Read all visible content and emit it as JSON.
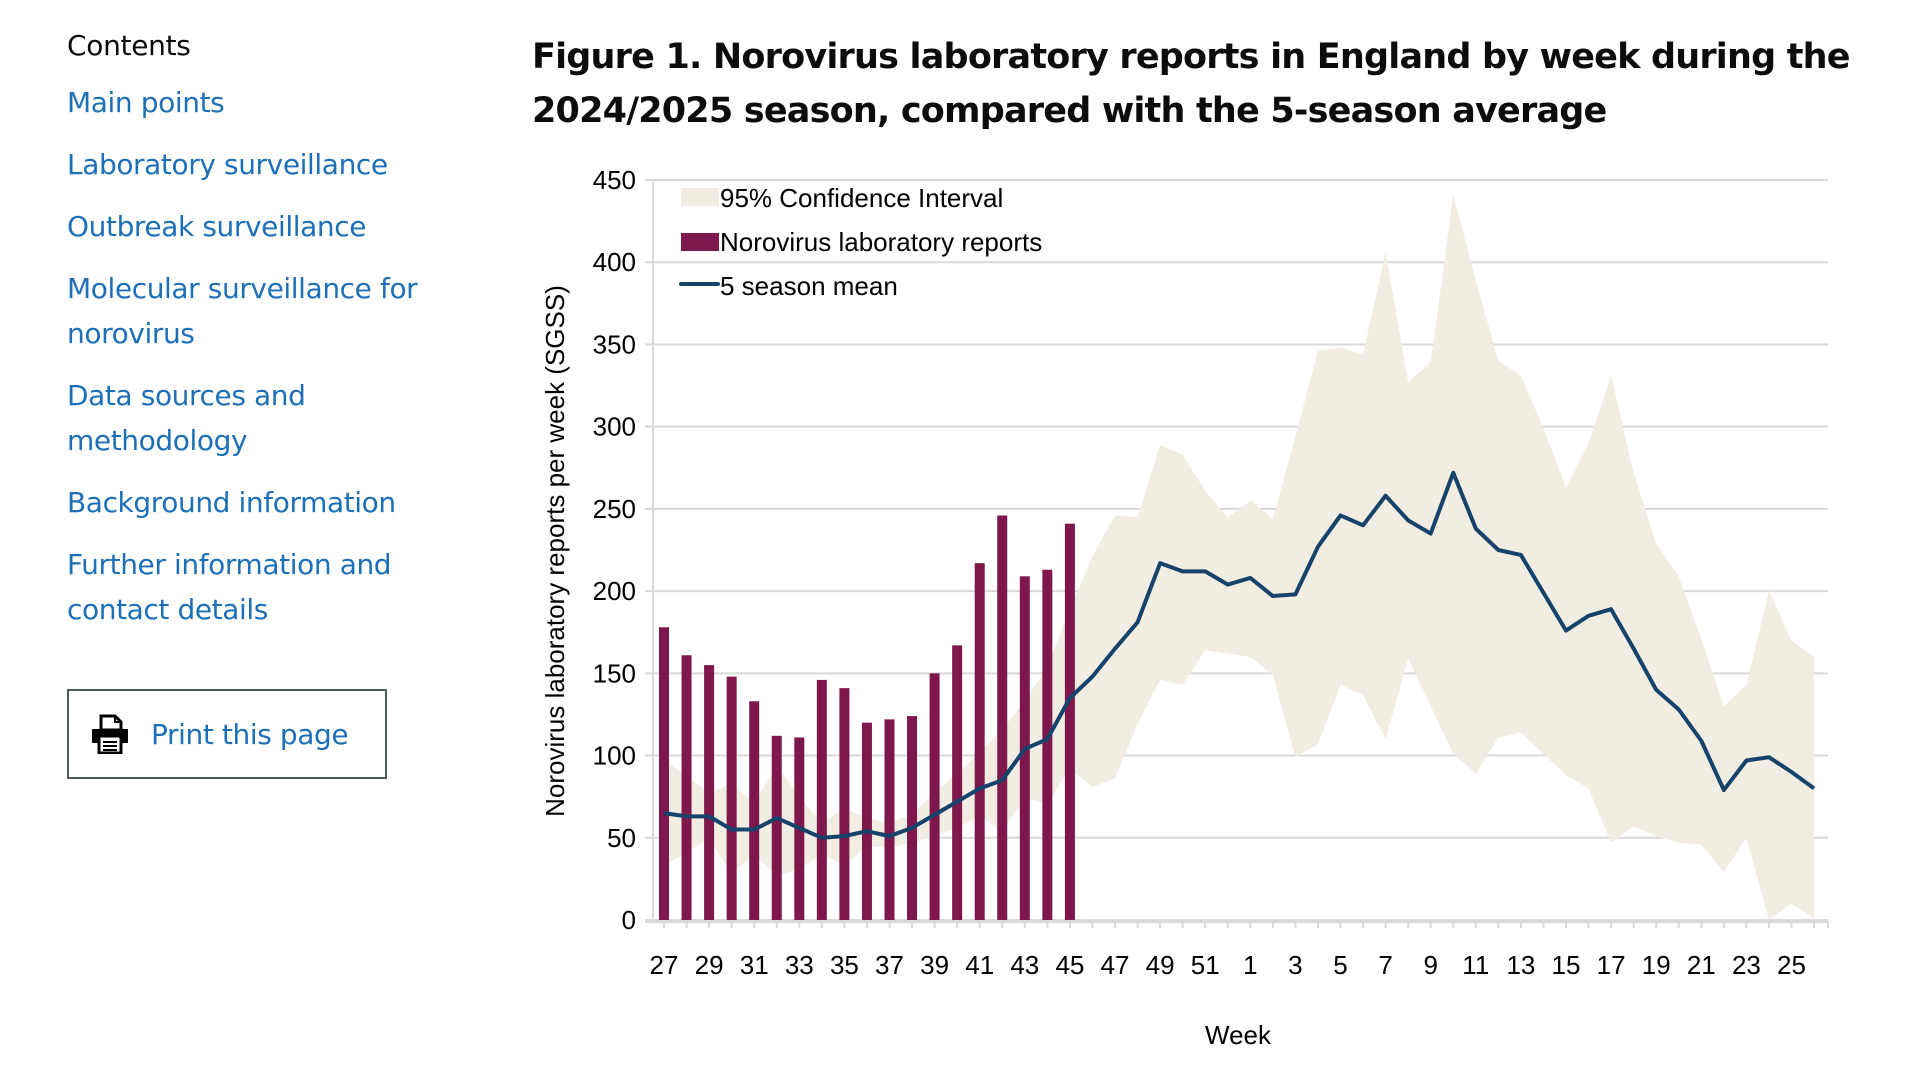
{
  "sidebar": {
    "heading": "Contents",
    "links": [
      {
        "lines": [
          "Main points"
        ]
      },
      {
        "lines": [
          "Laboratory surveillance"
        ]
      },
      {
        "lines": [
          "Outbreak surveillance"
        ]
      },
      {
        "lines": [
          "Molecular surveillance for",
          "norovirus"
        ]
      },
      {
        "lines": [
          "Data sources and",
          "methodology"
        ]
      },
      {
        "lines": [
          "Background information"
        ]
      },
      {
        "lines": [
          "Further information and",
          "contact details"
        ]
      }
    ],
    "print_label": "Print this page",
    "print_icon": "printer-icon"
  },
  "colors": {
    "link": "#1d70b8",
    "bars": "#7d174c",
    "mean_line": "#16436b",
    "ci_band": "#f1ede2",
    "grid": "#d9d9d9",
    "print_border": "#505a5f"
  },
  "figure": {
    "title_line1": "Figure 1. Norovirus laboratory reports in England by week during the",
    "title_line2": "2024/2025 season, compared with the 5-season average"
  },
  "chart_data": {
    "type": "bar",
    "title": "Figure 1. Norovirus laboratory reports in England by week during the 2024/2025 season, compared with the 5-season average",
    "xlabel": "Week",
    "ylabel": "Norovirus laboratory reports per week (SGSS)",
    "ylim": [
      0,
      450
    ],
    "yticks": [
      0,
      50,
      100,
      150,
      200,
      250,
      300,
      350,
      400,
      450
    ],
    "grid": true,
    "legend_position": "top-left",
    "weeks": [
      27,
      28,
      29,
      30,
      31,
      32,
      33,
      34,
      35,
      36,
      37,
      38,
      39,
      40,
      41,
      42,
      43,
      44,
      45,
      46,
      47,
      48,
      49,
      50,
      51,
      52,
      1,
      2,
      3,
      4,
      5,
      6,
      7,
      8,
      9,
      10,
      11,
      12,
      13,
      14,
      15,
      16,
      17,
      18,
      19,
      20,
      21,
      22,
      23,
      24,
      25,
      26
    ],
    "xtick_labels": [
      "27",
      "29",
      "31",
      "33",
      "35",
      "37",
      "39",
      "41",
      "43",
      "45",
      "47",
      "49",
      "51",
      "1",
      "3",
      "5",
      "7",
      "9",
      "11",
      "13",
      "15",
      "17",
      "19",
      "21",
      "23",
      "25"
    ],
    "legend": [
      "95% Confidence Interval",
      "Norovirus laboratory reports",
      "5 season mean"
    ],
    "series": [
      {
        "name": "Norovirus laboratory reports",
        "kind": "bar",
        "values": [
          178,
          161,
          155,
          148,
          133,
          112,
          111,
          146,
          141,
          120,
          122,
          124,
          150,
          167,
          217,
          246,
          209,
          213,
          241
        ]
      },
      {
        "name": "5 season mean",
        "kind": "line",
        "values": [
          65,
          63,
          63,
          55,
          55,
          62,
          56,
          50,
          51,
          54,
          51,
          56,
          64,
          72,
          80,
          85,
          104,
          110,
          135,
          148,
          165,
          181,
          217,
          212,
          212,
          204,
          208,
          197,
          198,
          227,
          246,
          240,
          258,
          243,
          235,
          272,
          238,
          225,
          222,
          199,
          176,
          185,
          189,
          165,
          140,
          128,
          109,
          79,
          97,
          99,
          90,
          80
        ]
      },
      {
        "name": "95% Confidence Interval",
        "kind": "band",
        "upper": [
          97,
          88,
          77,
          83,
          71,
          94,
          75,
          59,
          68,
          62,
          59,
          64,
          77,
          89,
          102,
          116,
          133,
          154,
          189,
          221,
          246,
          245,
          289,
          283,
          261,
          245,
          255,
          244,
          294,
          346,
          348,
          344,
          406,
          327,
          339,
          441,
          389,
          340,
          331,
          299,
          263,
          290,
          331,
          272,
          229,
          209,
          171,
          130,
          143,
          200,
          170,
          160
        ],
        "lower": [
          33,
          41,
          50,
          28,
          40,
          27,
          31,
          40,
          33,
          45,
          44,
          47,
          51,
          56,
          63,
          54,
          74,
          71,
          92,
          81,
          86,
          119,
          146,
          143,
          164,
          162,
          160,
          149,
          99,
          107,
          143,
          137,
          110,
          159,
          130,
          101,
          89,
          111,
          114,
          101,
          88,
          80,
          47,
          57,
          51,
          47,
          46,
          29,
          50,
          0,
          10,
          1
        ]
      }
    ]
  }
}
